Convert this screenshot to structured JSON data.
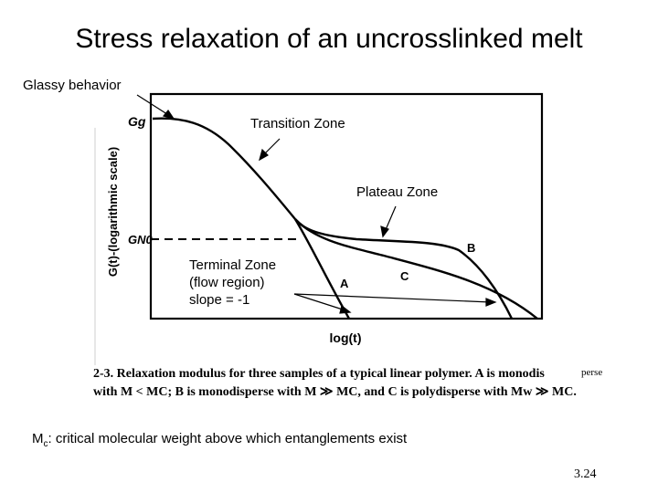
{
  "slide": {
    "title": "Stress relaxation of an uncrosslinked melt",
    "footnote_symbol": "M",
    "footnote_sub": "c",
    "footnote_text": ": critical molecular weight above which entanglements exist",
    "slide_number": "3.24"
  },
  "annotations": {
    "glassy": "Glassy behavior",
    "transition": "Transition Zone",
    "plateau": "Plateau Zone",
    "terminal_line1": "Terminal Zone",
    "terminal_line2": "(flow region)",
    "terminal_line3": "slope = -1"
  },
  "plot": {
    "y_axis_label": "G(t)-(logarithmic scale)",
    "x_axis_label": "log(t)",
    "g_glassy_label": "Gg",
    "g_plateau_label": "GN0",
    "curve_labels": [
      "A",
      "B",
      "C"
    ]
  },
  "caption": {
    "line1": "2-3.  Relaxation modulus for three samples of a typical linear polymer. A is monodis",
    "line1_tail": "perse",
    "line2": "with  M < MC;  B is monodisperse with  M ≫ MC,  and C is polydisperse with  Mw ≫ MC."
  },
  "colors": {
    "background": "#ffffff",
    "ink": "#000000"
  }
}
